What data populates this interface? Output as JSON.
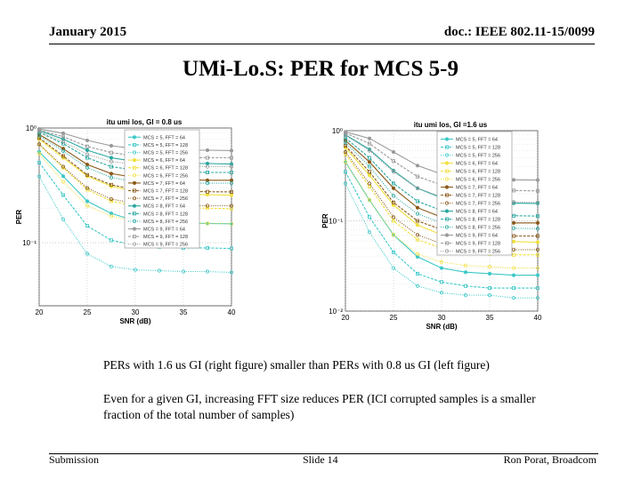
{
  "header": {
    "date": "January 2015",
    "doc_id": "doc.: IEEE 802.11-15/0099"
  },
  "slide": {
    "title": "UMi-Lo.S: PER for MCS 5-9"
  },
  "body": {
    "paragraph_1": "PERs with 1.6 us GI (right figure) smaller than PERs with 0.8 us GI (left figure)",
    "paragraph_2": "Even for a given GI, increasing FFT size reduces PER (ICI corrupted samples is a smaller fraction of the total number of samples)"
  },
  "footer": {
    "left": "Submission",
    "center": "Slide 14",
    "right": "Ron Porat, Broadcom"
  },
  "chart_data": [
    {
      "type": "line",
      "title": "itu umi los, GI = 0.8 us",
      "xlabel": "SNR (dB)",
      "ylabel": "PER",
      "xlim": [
        20,
        40
      ],
      "ylim_log10": [
        -1.55,
        0
      ],
      "x_ticks": [
        "20",
        "25",
        "30",
        "35",
        "40"
      ],
      "y_ticks": [
        "10⁰",
        "10⁻¹"
      ],
      "x": [
        20,
        22.5,
        25,
        27.5,
        30,
        32.5,
        35,
        37.5,
        40
      ],
      "series": [
        {
          "name": "MCS = 5, FFT = 64",
          "color": "#3cc8c8",
          "values": [
            0.62,
            0.38,
            0.23,
            0.18,
            0.155,
            0.15,
            0.148,
            0.147,
            0.146
          ]
        },
        {
          "name": "MCS = 5, FFT = 128",
          "color": "#3cc8c8",
          "values": [
            0.5,
            0.26,
            0.14,
            0.105,
            0.095,
            0.092,
            0.09,
            0.09,
            0.089
          ]
        },
        {
          "name": "MCS = 5, FFT = 256",
          "color": "#3cc8c8",
          "values": [
            0.38,
            0.16,
            0.08,
            0.062,
            0.058,
            0.057,
            0.056,
            0.056,
            0.055
          ]
        },
        {
          "name": "MCS = 6, FFT = 64",
          "color": "#f0e040",
          "values": [
            0.8,
            0.55,
            0.38,
            0.31,
            0.28,
            0.27,
            0.265,
            0.262,
            0.26
          ]
        },
        {
          "name": "MCS = 6, FFT = 128",
          "color": "#f0e040",
          "values": [
            0.72,
            0.45,
            0.29,
            0.23,
            0.21,
            0.205,
            0.2,
            0.2,
            0.198
          ]
        },
        {
          "name": "MCS = 6, FFT = 256",
          "color": "#f0e040",
          "values": [
            0.6,
            0.34,
            0.21,
            0.17,
            0.155,
            0.15,
            0.148,
            0.147,
            0.146
          ]
        },
        {
          "name": "MCS = 7, FFT = 64",
          "color": "#8a5a1a",
          "values": [
            0.88,
            0.66,
            0.48,
            0.4,
            0.37,
            0.36,
            0.355,
            0.35,
            0.35
          ]
        },
        {
          "name": "MCS = 7, FFT = 128",
          "color": "#8a5a1a",
          "values": [
            0.82,
            0.57,
            0.39,
            0.32,
            0.29,
            0.285,
            0.28,
            0.278,
            0.277
          ]
        },
        {
          "name": "MCS = 7, FFT = 256",
          "color": "#8a5a1a",
          "values": [
            0.72,
            0.46,
            0.3,
            0.24,
            0.22,
            0.215,
            0.212,
            0.21,
            0.21
          ]
        },
        {
          "name": "MCS = 8, FFT = 64",
          "color": "#2aa8a0",
          "values": [
            0.95,
            0.8,
            0.64,
            0.55,
            0.51,
            0.5,
            0.49,
            0.49,
            0.485
          ]
        },
        {
          "name": "MCS = 8, FFT = 128",
          "color": "#2aa8a0",
          "values": [
            0.92,
            0.73,
            0.55,
            0.46,
            0.43,
            0.42,
            0.415,
            0.41,
            0.41
          ]
        },
        {
          "name": "MCS = 8, FFT = 256",
          "color": "#2aa8a0",
          "values": [
            0.86,
            0.63,
            0.45,
            0.37,
            0.34,
            0.335,
            0.33,
            0.33,
            0.33
          ]
        },
        {
          "name": "MCS = 9, FFT = 64",
          "color": "#9a9a9a",
          "values": [
            0.98,
            0.9,
            0.78,
            0.7,
            0.66,
            0.65,
            0.64,
            0.64,
            0.635
          ]
        },
        {
          "name": "MCS = 9, FFT = 128",
          "color": "#9a9a9a",
          "values": [
            0.96,
            0.84,
            0.69,
            0.61,
            0.57,
            0.56,
            0.555,
            0.55,
            0.55
          ]
        },
        {
          "name": "MCS = 9, FFT = 256",
          "color": "#9a9a9a",
          "values": [
            0.93,
            0.76,
            0.59,
            0.51,
            0.48,
            0.47,
            0.465,
            0.46,
            0.46
          ]
        }
      ]
    },
    {
      "type": "line",
      "title": "itu umi los, GI =1.6 us",
      "xlabel": "SNR (dB)",
      "ylabel": "PER",
      "xlim": [
        20,
        40
      ],
      "ylim_log10": [
        -2,
        0
      ],
      "x_ticks": [
        "20",
        "25",
        "30",
        "35",
        "40"
      ],
      "y_ticks": [
        "10⁰",
        "10⁻¹",
        "10⁻²"
      ],
      "x": [
        20,
        22.5,
        25,
        27.5,
        30,
        32.5,
        35,
        37.5,
        40
      ],
      "series": [
        {
          "name": "MCS = 5, FFT = 64",
          "color": "#3cc8c8",
          "values": [
            0.45,
            0.17,
            0.07,
            0.04,
            0.03,
            0.027,
            0.026,
            0.025,
            0.025
          ]
        },
        {
          "name": "MCS = 5, FFT = 128",
          "color": "#3cc8c8",
          "values": [
            0.35,
            0.11,
            0.045,
            0.026,
            0.021,
            0.019,
            0.018,
            0.018,
            0.018
          ]
        },
        {
          "name": "MCS = 5, FFT = 256",
          "color": "#3cc8c8",
          "values": [
            0.26,
            0.075,
            0.03,
            0.019,
            0.016,
            0.015,
            0.015,
            0.014,
            0.014
          ]
        },
        {
          "name": "MCS = 6, FFT = 64",
          "color": "#f0e040",
          "values": [
            0.65,
            0.32,
            0.15,
            0.09,
            0.07,
            0.063,
            0.06,
            0.059,
            0.058
          ]
        },
        {
          "name": "MCS = 6, FFT = 128",
          "color": "#f0e040",
          "values": [
            0.55,
            0.24,
            0.1,
            0.062,
            0.05,
            0.045,
            0.043,
            0.042,
            0.042
          ]
        },
        {
          "name": "MCS = 6, FFT = 256",
          "color": "#f0e040",
          "values": [
            0.45,
            0.17,
            0.07,
            0.043,
            0.035,
            0.032,
            0.031,
            0.03,
            0.03
          ]
        },
        {
          "name": "MCS = 7, FFT = 64",
          "color": "#8a5a1a",
          "values": [
            0.78,
            0.45,
            0.23,
            0.14,
            0.11,
            0.1,
            0.097,
            0.095,
            0.095
          ]
        },
        {
          "name": "MCS = 7, FFT = 128",
          "color": "#8a5a1a",
          "values": [
            0.68,
            0.35,
            0.16,
            0.1,
            0.08,
            0.072,
            0.069,
            0.068,
            0.068
          ]
        },
        {
          "name": "MCS = 7, FFT = 256",
          "color": "#8a5a1a",
          "values": [
            0.58,
            0.26,
            0.11,
            0.07,
            0.056,
            0.051,
            0.049,
            0.048,
            0.048
          ]
        },
        {
          "name": "MCS = 8, FFT = 64",
          "color": "#2aa8a0",
          "values": [
            0.9,
            0.62,
            0.36,
            0.23,
            0.18,
            0.165,
            0.16,
            0.157,
            0.156
          ]
        },
        {
          "name": "MCS = 8, FFT = 128",
          "color": "#2aa8a0",
          "values": [
            0.83,
            0.5,
            0.26,
            0.165,
            0.13,
            0.12,
            0.116,
            0.114,
            0.113
          ]
        },
        {
          "name": "MCS = 8, FFT = 256",
          "color": "#2aa8a0",
          "values": [
            0.74,
            0.4,
            0.19,
            0.12,
            0.095,
            0.087,
            0.084,
            0.083,
            0.082
          ]
        },
        {
          "name": "MCS = 9, FFT = 64",
          "color": "#9a9a9a",
          "values": [
            0.97,
            0.82,
            0.58,
            0.41,
            0.33,
            0.3,
            0.29,
            0.285,
            0.283
          ]
        },
        {
          "name": "MCS = 9, FFT = 128",
          "color": "#9a9a9a",
          "values": [
            0.94,
            0.72,
            0.46,
            0.31,
            0.25,
            0.23,
            0.22,
            0.217,
            0.215
          ]
        },
        {
          "name": "MCS = 9, FFT = 256",
          "color": "#9a9a9a",
          "values": [
            0.89,
            0.6,
            0.35,
            0.23,
            0.185,
            0.17,
            0.165,
            0.162,
            0.16
          ]
        }
      ]
    }
  ]
}
